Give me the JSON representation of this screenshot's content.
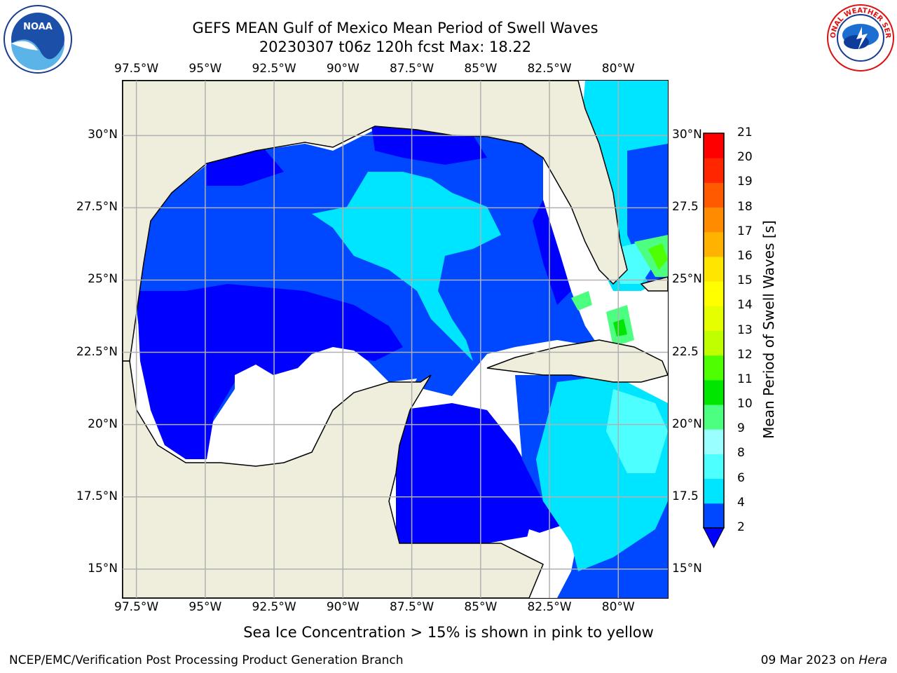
{
  "title": {
    "line1": "GEFS MEAN Gulf of Mexico Mean Period of Swell Waves",
    "line2": "20230307 t06z 120h fcst   Max: 18.22"
  },
  "logos": {
    "left": "noaa-logo",
    "left_text": "NOAA",
    "right": "national-weather-service-logo",
    "right_text": "NATIONAL WEATHER SERVICE"
  },
  "map": {
    "lon_ticks": [
      "97.5°W",
      "95°W",
      "92.5°W",
      "90°W",
      "87.5°W",
      "85°W",
      "82.5°W",
      "80°W"
    ],
    "lon_values": [
      -97.5,
      -95,
      -92.5,
      -90,
      -87.5,
      -85,
      -82.5,
      -80
    ],
    "lat_ticks_left": [
      "30°N",
      "27.5°N",
      "25°N",
      "22.5°N",
      "20°N",
      "17.5°N",
      "15°N"
    ],
    "lat_ticks_right": [
      "30°N",
      "27.5",
      "25°N",
      "22.5",
      "20°N",
      "17.5",
      "15°N"
    ],
    "lat_values": [
      30,
      27.5,
      25,
      22.5,
      20,
      17.5,
      15
    ],
    "lon_range": [
      -98,
      -78.2
    ],
    "lat_range": [
      14,
      31.9
    ],
    "land_color": "#efeedd",
    "grid": true,
    "grid_color": "#b0b0b0"
  },
  "colorbar": {
    "label": "Mean Period of Swell Waves [s]",
    "ticks": [
      "2",
      "4",
      "6",
      "8",
      "9",
      "10",
      "11",
      "12",
      "13",
      "14",
      "15",
      "16",
      "17",
      "18",
      "19",
      "20",
      "21"
    ],
    "extend": "min",
    "colors": [
      "#0048ff",
      "#00e5ff",
      "#4dffff",
      "#99ffff",
      "#4dff80",
      "#00e600",
      "#4dff00",
      "#bfff00",
      "#e6ff00",
      "#ffff00",
      "#ffe600",
      "#ffb300",
      "#ff8c00",
      "#ff5a00",
      "#ff2600",
      "#ff0000"
    ],
    "under_color": "#0000ff"
  },
  "note": "Sea Ice Concentration > 15% is shown in pink to yellow",
  "footer": {
    "left": "NCEP/EMC/Verification Post Processing Product Generation Branch",
    "date": "09 Mar 2023 on",
    "machine": "Hera"
  }
}
